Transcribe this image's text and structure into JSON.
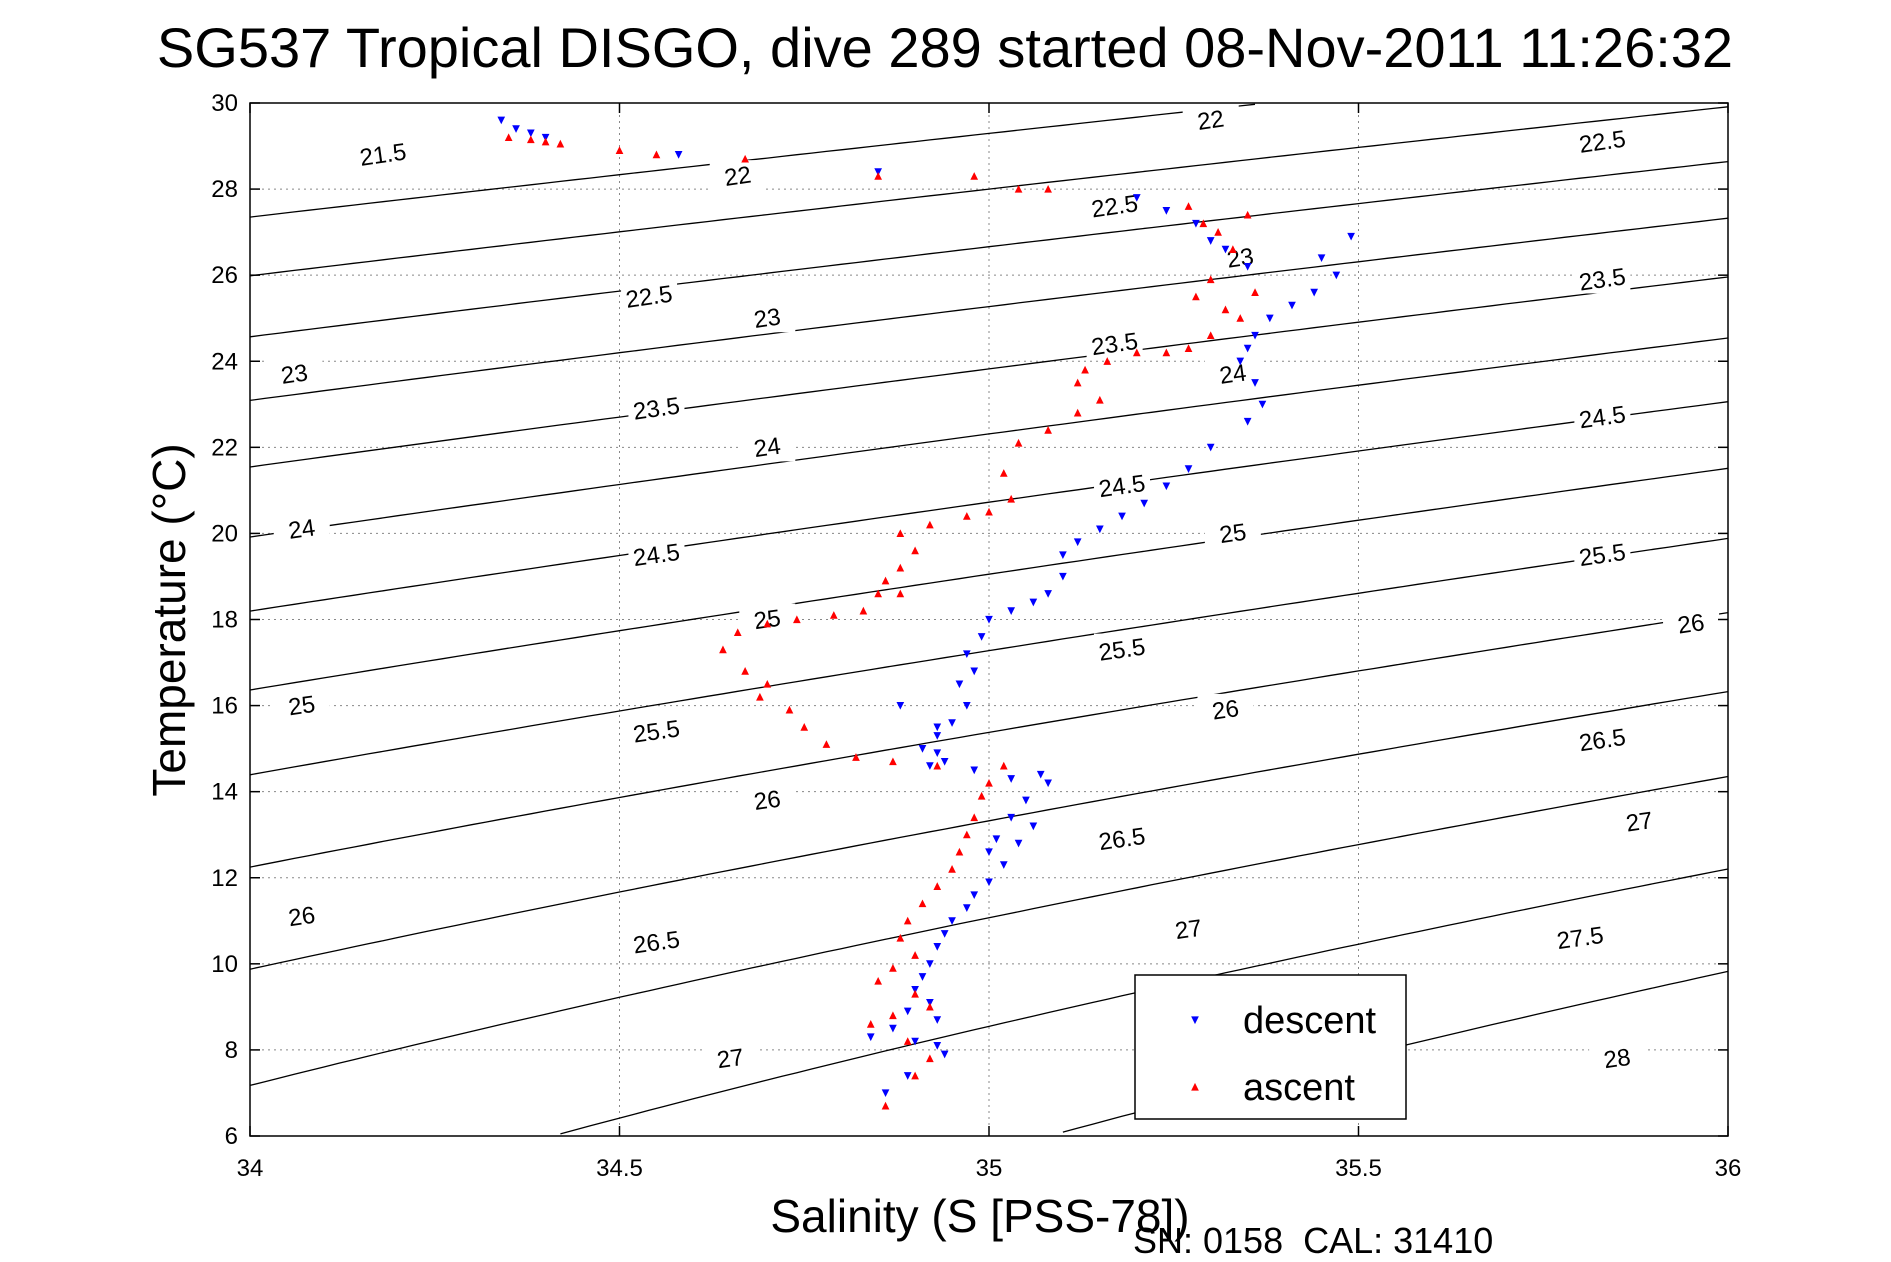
{
  "figure": {
    "title": "SG537 Tropical DISGO, dive 289 started 08-Nov-2011 11:26:32",
    "footer": "SN: 0158  CAL: 31410"
  },
  "chart_data": {
    "type": "scatter",
    "title": "SG537 Tropical DISGO, dive 289 started 08-Nov-2011 11:26:32",
    "xlabel": "Salinity (S [PSS-78])",
    "ylabel": "Temperature (°C)",
    "xlim": [
      34,
      36
    ],
    "ylim": [
      6,
      30
    ],
    "xticks": [
      34,
      34.5,
      35,
      35.5,
      36
    ],
    "xtick_labels": [
      "34",
      "34.5",
      "35",
      "35.5",
      "36"
    ],
    "yticks": [
      6,
      8,
      10,
      12,
      14,
      16,
      18,
      20,
      22,
      24,
      26,
      28,
      30
    ],
    "ytick_labels": [
      "6",
      "8",
      "10",
      "12",
      "14",
      "16",
      "18",
      "20",
      "22",
      "24",
      "26",
      "28",
      "30"
    ],
    "grid": true,
    "legend_position": "bottom-right",
    "density_contours": {
      "levels": [
        21.5,
        22,
        22.5,
        23,
        23.5,
        24,
        24.5,
        25,
        25.5,
        26,
        26.5,
        27,
        27.5,
        28
      ],
      "color": "#000000",
      "labels": [
        {
          "text": "21.5",
          "s": 34.18,
          "t": 28.8
        },
        {
          "text": "22",
          "s": 34.66,
          "t": 28.3
        },
        {
          "text": "22",
          "s": 35.3,
          "t": 29.6
        },
        {
          "text": "22.5",
          "s": 34.54,
          "t": 25.5
        },
        {
          "text": "22.5",
          "s": 35.17,
          "t": 27.6
        },
        {
          "text": "22.5",
          "s": 35.83,
          "t": 29.1
        },
        {
          "text": "23",
          "s": 34.06,
          "t": 23.7
        },
        {
          "text": "23",
          "s": 34.7,
          "t": 25.0
        },
        {
          "text": "23",
          "s": 35.34,
          "t": 26.4
        },
        {
          "text": "23.5",
          "s": 34.55,
          "t": 22.9
        },
        {
          "text": "23.5",
          "s": 35.17,
          "t": 24.4
        },
        {
          "text": "23.5",
          "s": 35.83,
          "t": 25.9
        },
        {
          "text": "24",
          "s": 34.7,
          "t": 22.0
        },
        {
          "text": "24",
          "s": 35.33,
          "t": 23.7
        },
        {
          "text": "24",
          "s": 34.07,
          "t": 20.1
        },
        {
          "text": "24.5",
          "s": 34.55,
          "t": 19.5
        },
        {
          "text": "24.5",
          "s": 35.18,
          "t": 21.1
        },
        {
          "text": "24.5",
          "s": 35.83,
          "t": 22.7
        },
        {
          "text": "25",
          "s": 34.7,
          "t": 18.0
        },
        {
          "text": "25",
          "s": 35.33,
          "t": 20.0
        },
        {
          "text": "25",
          "s": 34.07,
          "t": 16.0
        },
        {
          "text": "25.5",
          "s": 34.55,
          "t": 15.4
        },
        {
          "text": "25.5",
          "s": 35.18,
          "t": 17.3
        },
        {
          "text": "25.5",
          "s": 35.83,
          "t": 19.5
        },
        {
          "text": "26",
          "s": 34.7,
          "t": 13.8
        },
        {
          "text": "26",
          "s": 35.32,
          "t": 15.9
        },
        {
          "text": "26",
          "s": 35.95,
          "t": 17.9
        },
        {
          "text": "26",
          "s": 34.07,
          "t": 11.1
        },
        {
          "text": "26.5",
          "s": 34.55,
          "t": 10.5
        },
        {
          "text": "26.5",
          "s": 35.18,
          "t": 12.9
        },
        {
          "text": "26.5",
          "s": 35.83,
          "t": 15.2
        },
        {
          "text": "27",
          "s": 34.65,
          "t": 7.8
        },
        {
          "text": "27",
          "s": 35.27,
          "t": 10.8
        },
        {
          "text": "27",
          "s": 35.88,
          "t": 13.3
        },
        {
          "text": "27.5",
          "s": 35.8,
          "t": 10.6
        },
        {
          "text": "28",
          "s": 35.85,
          "t": 7.8
        }
      ]
    },
    "series": [
      {
        "name": "descent",
        "color": "#0000ff",
        "marker": "triangle-down",
        "x": [
          34.34,
          34.36,
          34.38,
          34.4,
          34.58,
          34.85,
          35.2,
          35.24,
          35.28,
          35.3,
          35.32,
          35.35,
          35.49,
          35.45,
          35.47,
          35.44,
          35.41,
          35.38,
          35.36,
          35.35,
          35.34,
          35.36,
          35.37,
          35.35,
          35.3,
          35.27,
          35.24,
          35.21,
          35.18,
          35.15,
          35.12,
          35.1,
          35.1,
          35.08,
          35.06,
          35.03,
          35.0,
          34.99,
          34.97,
          34.96,
          34.98,
          34.97,
          34.95,
          34.93,
          34.91,
          34.93,
          34.94,
          34.92,
          34.88,
          34.93,
          34.98,
          35.03,
          35.08,
          35.07,
          35.05,
          35.03,
          35.06,
          35.01,
          35.0,
          35.04,
          35.02,
          35.0,
          34.98,
          34.97,
          34.95,
          34.94,
          34.93,
          34.92,
          34.91,
          34.9,
          34.92,
          34.89,
          34.93,
          34.87,
          34.84,
          34.9,
          34.93,
          34.94,
          34.89,
          34.86
        ],
        "y": [
          29.6,
          29.4,
          29.3,
          29.2,
          28.8,
          28.4,
          27.8,
          27.5,
          27.2,
          26.8,
          26.6,
          26.2,
          26.9,
          26.4,
          26.0,
          25.6,
          25.3,
          25.0,
          24.6,
          24.3,
          24.0,
          23.5,
          23.0,
          22.6,
          22.0,
          21.5,
          21.1,
          20.7,
          20.4,
          20.1,
          19.8,
          19.5,
          19.0,
          18.6,
          18.4,
          18.2,
          18.0,
          17.6,
          17.2,
          16.5,
          16.8,
          16.0,
          15.6,
          15.3,
          15.0,
          14.9,
          14.7,
          14.6,
          16.0,
          15.5,
          14.5,
          14.3,
          14.2,
          14.4,
          13.8,
          13.4,
          13.2,
          12.9,
          12.6,
          12.8,
          12.3,
          11.9,
          11.6,
          11.3,
          11.0,
          10.7,
          10.4,
          10.0,
          9.7,
          9.4,
          9.1,
          8.9,
          8.7,
          8.5,
          8.3,
          8.2,
          8.1,
          7.9,
          7.4,
          7.0
        ]
      },
      {
        "name": "ascent",
        "color": "#ff0000",
        "marker": "triangle-up",
        "x": [
          34.35,
          34.38,
          34.4,
          34.42,
          34.5,
          34.55,
          34.67,
          34.85,
          34.98,
          35.04,
          35.08,
          35.27,
          35.29,
          35.31,
          35.33,
          35.35,
          35.3,
          35.28,
          35.32,
          35.36,
          35.34,
          35.3,
          35.27,
          35.24,
          35.2,
          35.16,
          35.13,
          35.12,
          35.15,
          35.12,
          35.08,
          35.04,
          35.02,
          35.03,
          35.0,
          34.97,
          34.92,
          34.88,
          34.9,
          34.88,
          34.86,
          34.85,
          34.88,
          34.83,
          34.79,
          34.74,
          34.7,
          34.66,
          34.64,
          34.67,
          34.7,
          34.69,
          34.73,
          34.75,
          34.78,
          34.82,
          34.87,
          34.93,
          35.02,
          35.0,
          34.99,
          34.98,
          34.97,
          34.96,
          34.95,
          34.93,
          34.91,
          34.89,
          34.88,
          34.9,
          34.87,
          34.85,
          34.9,
          34.92,
          34.87,
          34.84,
          34.89,
          34.92,
          34.9,
          34.86
        ],
        "y": [
          29.2,
          29.15,
          29.1,
          29.05,
          28.9,
          28.8,
          28.7,
          28.3,
          28.3,
          28.0,
          28.0,
          27.6,
          27.2,
          27.0,
          26.6,
          27.4,
          25.9,
          25.5,
          25.2,
          25.6,
          25.0,
          24.6,
          24.3,
          24.2,
          24.2,
          24.0,
          23.8,
          23.5,
          23.1,
          22.8,
          22.4,
          22.1,
          21.4,
          20.8,
          20.5,
          20.4,
          20.2,
          20.0,
          19.6,
          19.2,
          18.9,
          18.6,
          18.6,
          18.2,
          18.1,
          18.0,
          17.9,
          17.7,
          17.3,
          16.8,
          16.5,
          16.2,
          15.9,
          15.5,
          15.1,
          14.8,
          14.7,
          14.6,
          14.6,
          14.2,
          13.9,
          13.4,
          13.0,
          12.6,
          12.2,
          11.8,
          11.4,
          11.0,
          10.6,
          10.2,
          9.9,
          9.6,
          9.3,
          9.0,
          8.8,
          8.6,
          8.2,
          7.8,
          7.4,
          6.7
        ]
      }
    ]
  }
}
